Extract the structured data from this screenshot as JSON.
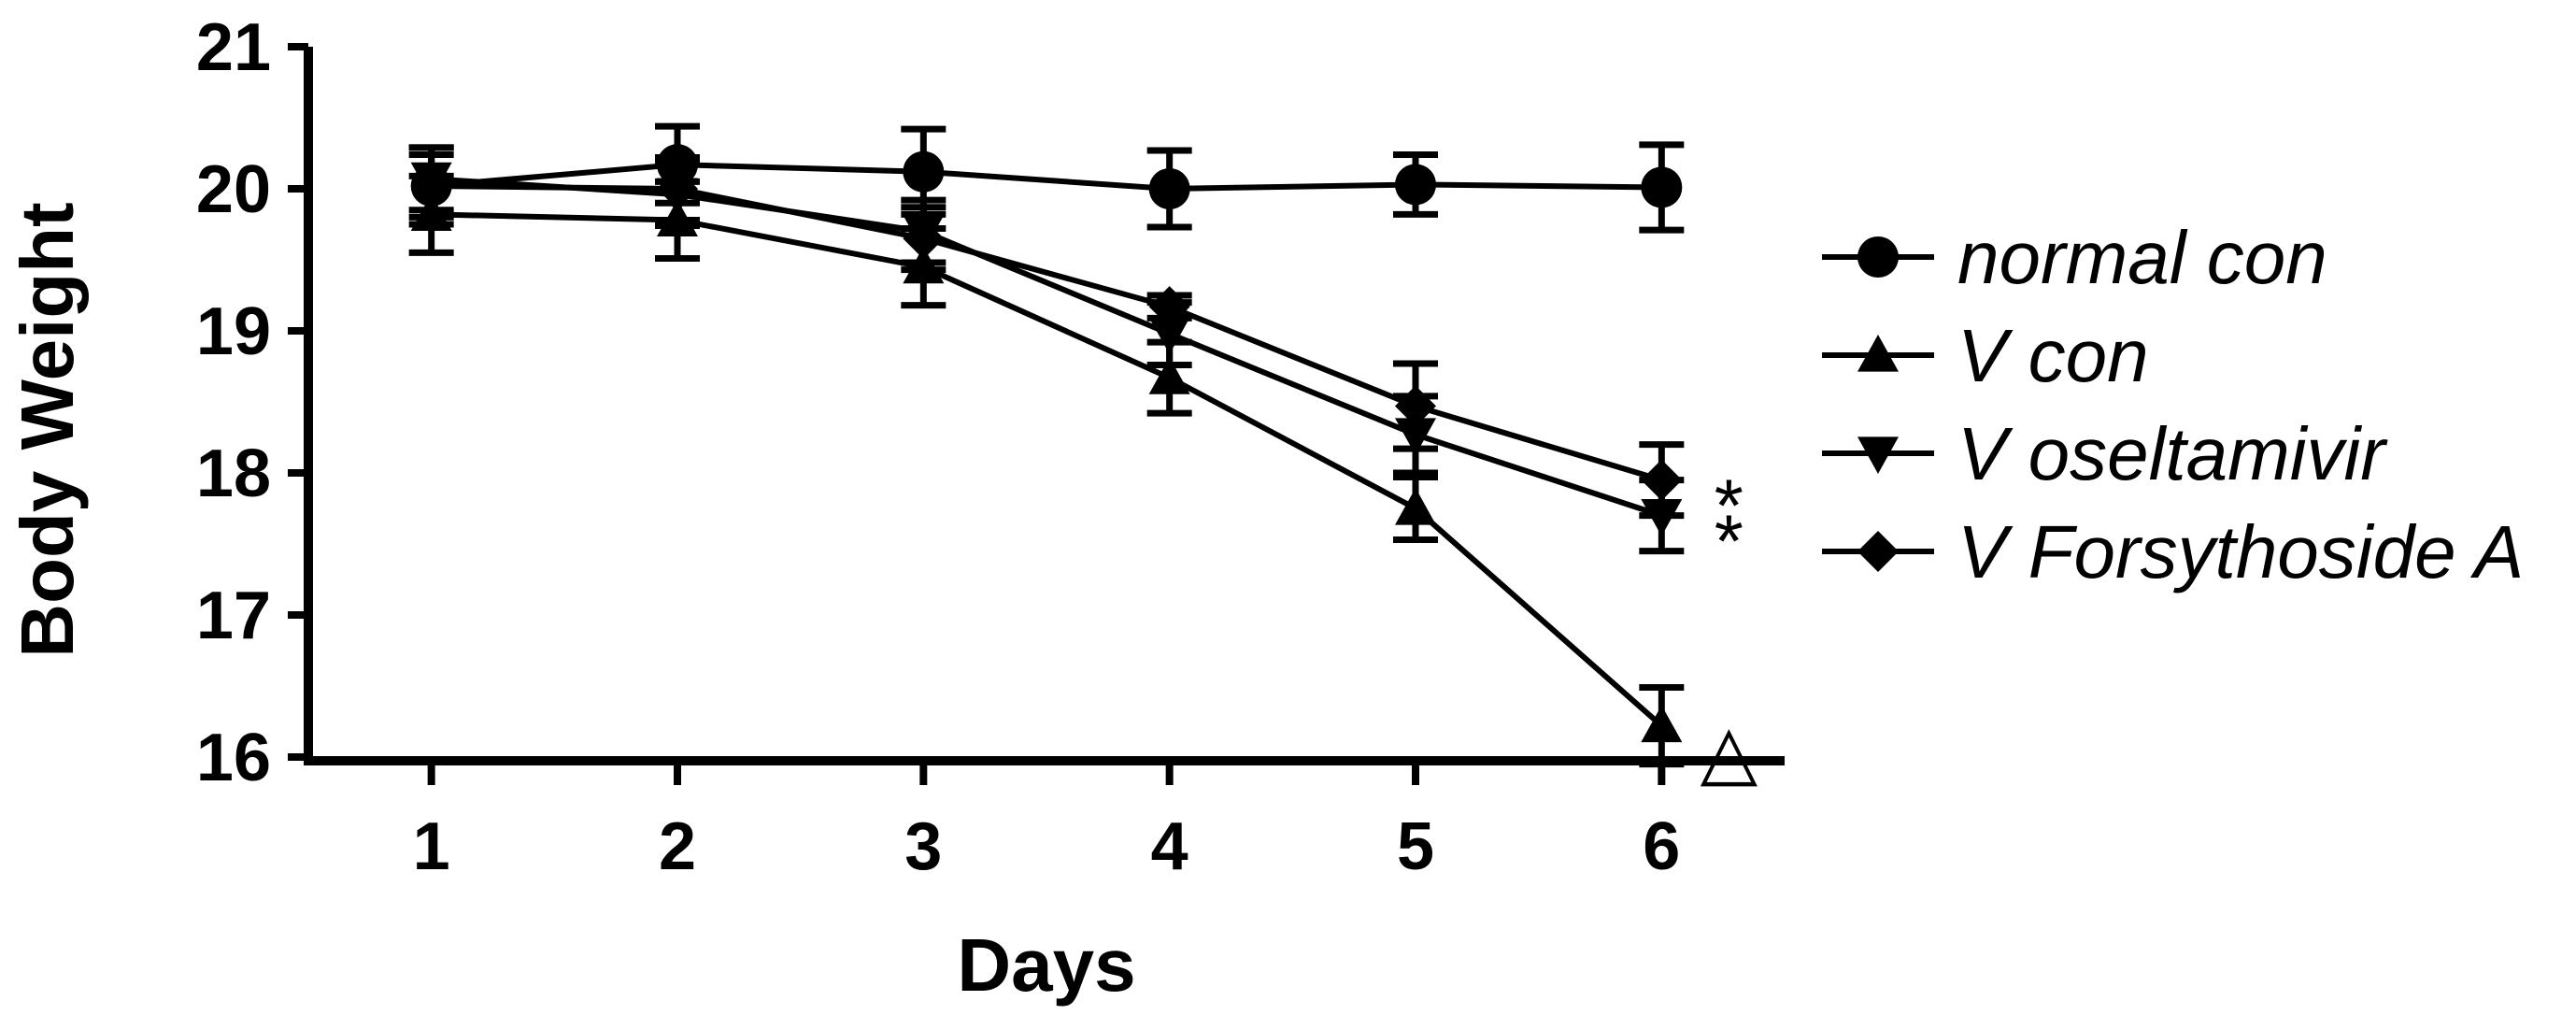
{
  "chart_data": {
    "type": "line",
    "xlabel": "Days",
    "ylabel": "Body Weight",
    "x": [
      1,
      2,
      3,
      4,
      5,
      6
    ],
    "xlim": [
      0.5,
      6.5
    ],
    "ylim": [
      16,
      21
    ],
    "yticks": [
      16,
      17,
      18,
      19,
      20,
      21
    ],
    "grid": false,
    "legend_position": "right",
    "series": [
      {
        "name": "normal con",
        "marker": "circle",
        "values": [
          20.02,
          20.17,
          20.12,
          20.0,
          20.03,
          20.01
        ],
        "errors": [
          0.27,
          0.27,
          0.3,
          0.27,
          0.21,
          0.3
        ]
      },
      {
        "name": "V con",
        "marker": "triangle-up",
        "values": [
          19.82,
          19.78,
          19.45,
          18.67,
          17.75,
          16.22
        ],
        "errors": [
          0.27,
          0.27,
          0.27,
          0.25,
          0.22,
          0.27
        ]
      },
      {
        "name": "V oseltamivir",
        "marker": "triangle-down",
        "values": [
          20.07,
          19.96,
          19.7,
          18.98,
          18.27,
          17.7
        ],
        "errors": [
          0.22,
          0.22,
          0.22,
          0.22,
          0.27,
          0.25
        ]
      },
      {
        "name": "V Forsythoside A",
        "marker": "diamond",
        "values": [
          20.02,
          20.0,
          19.65,
          19.17,
          18.47,
          17.95
        ],
        "errors": [
          0.22,
          0.22,
          0.22,
          0.08,
          0.3,
          0.25
        ]
      }
    ],
    "annotations": [
      {
        "text": "*",
        "series": "V Forsythoside A",
        "x": 6
      },
      {
        "text": "*",
        "series": "V oseltamivir",
        "x": 6
      },
      {
        "text": "△",
        "series": "V con",
        "x": 6
      }
    ]
  }
}
